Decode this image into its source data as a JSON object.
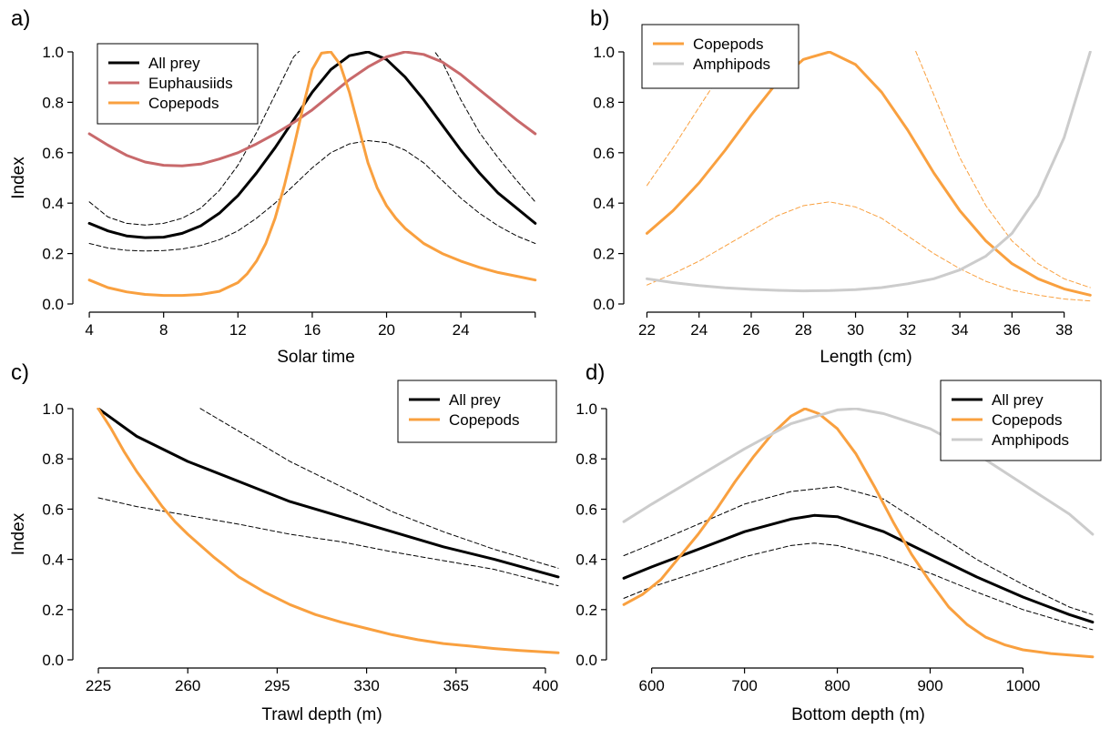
{
  "colors": {
    "all_prey": "#000000",
    "euphausiids": "#c8696b",
    "copepods": "#f9a03f",
    "amphipods": "#cccccc",
    "ci_all_prey": "#000000",
    "ci_copepods": "#f9a03f"
  },
  "chart_data": [
    {
      "type": "line",
      "panel": "a)",
      "xlabel": "Solar time",
      "ylabel": "Index",
      "xlim": [
        3.8,
        28.6
      ],
      "ylim": [
        0,
        1.0
      ],
      "xticks": [
        4,
        8,
        12,
        16,
        20,
        24,
        28
      ],
      "xtick_labels": [
        "4",
        "8",
        "12",
        "16",
        "20",
        "24",
        ""
      ],
      "yticks": [
        0,
        0.2,
        0.4,
        0.6,
        0.8,
        1.0
      ],
      "ytick_labels": [
        "0.0",
        "0.2",
        "0.4",
        "0.6",
        "0.8",
        "1.0"
      ],
      "legend_position": "top-left",
      "series": [
        {
          "name": "All prey",
          "color": "#000000",
          "style": "solid",
          "width": 3,
          "legend": true,
          "x": [
            4,
            5,
            6,
            7,
            8,
            9,
            10,
            11,
            12,
            13,
            14,
            15,
            16,
            17,
            18,
            19,
            20,
            21,
            22,
            23,
            24,
            25,
            26,
            27,
            28
          ],
          "y": [
            0.32,
            0.29,
            0.27,
            0.263,
            0.265,
            0.28,
            0.31,
            0.36,
            0.43,
            0.52,
            0.62,
            0.73,
            0.84,
            0.93,
            0.985,
            1.0,
            0.97,
            0.9,
            0.81,
            0.71,
            0.61,
            0.52,
            0.44,
            0.38,
            0.32
          ]
        },
        {
          "name": "Euphausiids",
          "color": "#c8696b",
          "style": "solid",
          "width": 3,
          "legend": true,
          "x": [
            4,
            5,
            6,
            7,
            8,
            9,
            10,
            11,
            12,
            13,
            14,
            15,
            16,
            17,
            18,
            19,
            20,
            21,
            22,
            23,
            24,
            25,
            26,
            27,
            28
          ],
          "y": [
            0.675,
            0.63,
            0.59,
            0.563,
            0.55,
            0.548,
            0.555,
            0.575,
            0.6,
            0.635,
            0.675,
            0.72,
            0.77,
            0.83,
            0.89,
            0.94,
            0.98,
            1.0,
            0.99,
            0.96,
            0.91,
            0.85,
            0.79,
            0.73,
            0.675
          ]
        },
        {
          "name": "Copepods",
          "color": "#f9a03f",
          "style": "solid",
          "width": 3,
          "legend": true,
          "x": [
            4,
            5,
            6,
            7,
            8,
            9,
            10,
            11,
            12,
            12.5,
            13,
            13.5,
            14,
            14.5,
            15,
            15.5,
            16,
            16.5,
            17,
            17.5,
            18,
            18.5,
            19,
            19.5,
            20,
            20.5,
            21,
            22,
            23,
            24,
            25,
            26,
            27,
            28
          ],
          "y": [
            0.095,
            0.065,
            0.048,
            0.038,
            0.034,
            0.034,
            0.038,
            0.05,
            0.085,
            0.12,
            0.17,
            0.24,
            0.34,
            0.47,
            0.62,
            0.78,
            0.93,
            0.995,
            1.0,
            0.95,
            0.84,
            0.7,
            0.56,
            0.46,
            0.39,
            0.34,
            0.3,
            0.24,
            0.2,
            0.17,
            0.145,
            0.125,
            0.11,
            0.095
          ]
        },
        {
          "color": "#000000",
          "style": "dashed",
          "width": 1,
          "legend": false,
          "x": [
            4,
            5,
            6,
            7,
            8,
            9,
            10,
            11,
            12,
            13,
            14,
            15,
            15.8
          ],
          "y": [
            0.405,
            0.345,
            0.32,
            0.313,
            0.32,
            0.34,
            0.38,
            0.45,
            0.55,
            0.68,
            0.83,
            0.98,
            1.04
          ]
        },
        {
          "color": "#000000",
          "style": "dashed",
          "width": 1,
          "legend": false,
          "x": [
            22.4,
            23,
            24,
            25,
            26,
            27,
            28
          ],
          "y": [
            1.02,
            0.96,
            0.81,
            0.68,
            0.58,
            0.49,
            0.405
          ]
        },
        {
          "color": "#000000",
          "style": "dashed",
          "width": 1,
          "legend": false,
          "x": [
            4,
            5,
            6,
            7,
            8,
            9,
            10,
            11,
            12,
            13,
            14,
            15,
            16,
            17,
            18,
            19,
            20,
            21,
            22,
            23,
            24,
            25,
            26,
            27,
            28
          ],
          "y": [
            0.24,
            0.222,
            0.213,
            0.21,
            0.212,
            0.218,
            0.232,
            0.255,
            0.29,
            0.34,
            0.4,
            0.47,
            0.54,
            0.6,
            0.635,
            0.648,
            0.64,
            0.61,
            0.56,
            0.49,
            0.42,
            0.36,
            0.31,
            0.27,
            0.24
          ]
        }
      ]
    },
    {
      "type": "line",
      "panel": "b)",
      "xlabel": "Length (cm)",
      "ylabel": "",
      "xlim": [
        21.6,
        39.2
      ],
      "ylim": [
        0,
        1.0
      ],
      "xticks": [
        22,
        24,
        26,
        28,
        30,
        32,
        34,
        36,
        38
      ],
      "xtick_labels": [
        "22",
        "24",
        "26",
        "28",
        "30",
        "32",
        "34",
        "36",
        "38"
      ],
      "yticks": [
        0,
        0.2,
        0.4,
        0.6,
        0.8,
        1.0
      ],
      "ytick_labels": [
        "0.0",
        "0.2",
        "0.4",
        "0.6",
        "0.8",
        "1.0"
      ],
      "legend_position": "top-left",
      "series": [
        {
          "name": "Copepods",
          "color": "#f9a03f",
          "style": "solid",
          "width": 3,
          "legend": true,
          "x": [
            22,
            23,
            24,
            25,
            26,
            27,
            28,
            29,
            30,
            31,
            32,
            33,
            34,
            35,
            36,
            37,
            38,
            39
          ],
          "y": [
            0.28,
            0.37,
            0.48,
            0.61,
            0.75,
            0.88,
            0.97,
            1.0,
            0.95,
            0.84,
            0.69,
            0.52,
            0.37,
            0.25,
            0.16,
            0.1,
            0.06,
            0.035
          ]
        },
        {
          "name": "Amphipods",
          "color": "#cccccc",
          "style": "solid",
          "width": 3,
          "legend": true,
          "x": [
            22,
            23,
            24,
            25,
            26,
            27,
            28,
            29,
            30,
            31,
            32,
            33,
            34,
            35,
            36,
            37,
            38,
            39
          ],
          "y": [
            0.1,
            0.085,
            0.073,
            0.064,
            0.058,
            0.054,
            0.052,
            0.053,
            0.057,
            0.065,
            0.08,
            0.1,
            0.135,
            0.19,
            0.28,
            0.43,
            0.66,
            1.0
          ]
        },
        {
          "color": "#f9a03f",
          "style": "dashed",
          "width": 1,
          "legend": false,
          "x": [
            22,
            23,
            24,
            25,
            25.7
          ],
          "y": [
            0.47,
            0.62,
            0.78,
            0.94,
            1.03
          ]
        },
        {
          "color": "#f9a03f",
          "style": "dashed",
          "width": 1,
          "legend": false,
          "x": [
            32.2,
            33,
            34,
            35,
            36,
            37,
            38,
            39
          ],
          "y": [
            1.03,
            0.83,
            0.58,
            0.39,
            0.25,
            0.16,
            0.1,
            0.065
          ]
        },
        {
          "color": "#f9a03f",
          "style": "dashed",
          "width": 1,
          "legend": false,
          "x": [
            22,
            23,
            24,
            25,
            26,
            27,
            28,
            29,
            30,
            31,
            32,
            33,
            34,
            35,
            36,
            37,
            38,
            39
          ],
          "y": [
            0.075,
            0.12,
            0.17,
            0.23,
            0.29,
            0.35,
            0.39,
            0.405,
            0.385,
            0.34,
            0.27,
            0.2,
            0.14,
            0.09,
            0.055,
            0.035,
            0.02,
            0.012
          ]
        }
      ]
    },
    {
      "type": "line",
      "panel": "c)",
      "xlabel": "Trawl depth (m)",
      "ylabel": "Index",
      "xlim": [
        220,
        405
      ],
      "ylim": [
        0,
        1.0
      ],
      "xticks": [
        225,
        260,
        295,
        330,
        365,
        400
      ],
      "xtick_labels": [
        "225",
        "260",
        "295",
        "330",
        "365",
        "400"
      ],
      "yticks": [
        0,
        0.2,
        0.4,
        0.6,
        0.8,
        1.0
      ],
      "ytick_labels": [
        "0.0",
        "0.2",
        "0.4",
        "0.6",
        "0.8",
        "1.0"
      ],
      "legend_position": "top-right",
      "series": [
        {
          "name": "All prey",
          "color": "#000000",
          "style": "solid",
          "width": 3,
          "legend": true,
          "x": [
            225,
            240,
            260,
            280,
            300,
            320,
            340,
            360,
            380,
            405
          ],
          "y": [
            1.0,
            0.89,
            0.79,
            0.71,
            0.63,
            0.57,
            0.51,
            0.45,
            0.4,
            0.33
          ]
        },
        {
          "name": "Copepods",
          "color": "#f9a03f",
          "style": "solid",
          "width": 3,
          "legend": true,
          "x": [
            225,
            230,
            235,
            240,
            245,
            250,
            255,
            260,
            270,
            280,
            290,
            300,
            310,
            320,
            330,
            340,
            350,
            360,
            370,
            380,
            390,
            405
          ],
          "y": [
            1.0,
            0.92,
            0.83,
            0.75,
            0.68,
            0.61,
            0.55,
            0.5,
            0.41,
            0.33,
            0.27,
            0.22,
            0.18,
            0.15,
            0.125,
            0.1,
            0.08,
            0.065,
            0.055,
            0.045,
            0.037,
            0.028
          ]
        },
        {
          "color": "#000000",
          "style": "dashed",
          "width": 1,
          "legend": false,
          "x": [
            260,
            280,
            300,
            320,
            340,
            360,
            380,
            405
          ],
          "y": [
            1.03,
            0.91,
            0.79,
            0.69,
            0.59,
            0.51,
            0.44,
            0.365
          ]
        },
        {
          "color": "#000000",
          "style": "dashed",
          "width": 1,
          "legend": false,
          "x": [
            225,
            240,
            260,
            280,
            300,
            320,
            340,
            360,
            380,
            405
          ],
          "y": [
            0.645,
            0.61,
            0.575,
            0.54,
            0.5,
            0.47,
            0.43,
            0.395,
            0.36,
            0.295
          ]
        }
      ]
    },
    {
      "type": "line",
      "panel": "d)",
      "xlabel": "Bottom depth (m)",
      "ylabel": "",
      "xlim": [
        565,
        1080
      ],
      "ylim": [
        0,
        1.0
      ],
      "xticks": [
        600,
        700,
        800,
        900,
        1000
      ],
      "xtick_labels": [
        "600",
        "700",
        "800",
        "900",
        "1000"
      ],
      "yticks": [
        0,
        0.2,
        0.4,
        0.6,
        0.8,
        1.0
      ],
      "ytick_labels": [
        "0.0",
        "0.2",
        "0.4",
        "0.6",
        "0.8",
        "1.0"
      ],
      "legend_position": "top-right",
      "series": [
        {
          "name": "All prey",
          "color": "#000000",
          "style": "solid",
          "width": 3,
          "legend": true,
          "x": [
            570,
            600,
            650,
            700,
            750,
            775,
            800,
            850,
            900,
            950,
            1000,
            1050,
            1075
          ],
          "y": [
            0.325,
            0.37,
            0.44,
            0.51,
            0.56,
            0.575,
            0.57,
            0.51,
            0.42,
            0.33,
            0.25,
            0.18,
            0.15
          ]
        },
        {
          "name": "Copepods",
          "color": "#f9a03f",
          "style": "solid",
          "width": 3,
          "legend": true,
          "x": [
            570,
            590,
            610,
            630,
            650,
            670,
            690,
            710,
            730,
            750,
            765,
            780,
            800,
            820,
            840,
            860,
            880,
            900,
            920,
            940,
            960,
            980,
            1000,
            1030,
            1075
          ],
          "y": [
            0.22,
            0.26,
            0.32,
            0.41,
            0.5,
            0.6,
            0.71,
            0.81,
            0.9,
            0.97,
            1.0,
            0.98,
            0.92,
            0.82,
            0.69,
            0.55,
            0.42,
            0.31,
            0.21,
            0.14,
            0.09,
            0.06,
            0.04,
            0.025,
            0.012
          ]
        },
        {
          "name": "Amphipods",
          "color": "#cccccc",
          "style": "solid",
          "width": 3,
          "legend": true,
          "x": [
            570,
            600,
            650,
            700,
            750,
            800,
            820,
            850,
            900,
            950,
            1000,
            1050,
            1075
          ],
          "y": [
            0.55,
            0.62,
            0.73,
            0.84,
            0.94,
            0.995,
            1.0,
            0.98,
            0.92,
            0.82,
            0.7,
            0.58,
            0.5
          ]
        },
        {
          "color": "#000000",
          "style": "dashed",
          "width": 1,
          "legend": false,
          "x": [
            570,
            600,
            650,
            700,
            750,
            800,
            850,
            900,
            950,
            1000,
            1050,
            1075
          ],
          "y": [
            0.415,
            0.46,
            0.54,
            0.62,
            0.67,
            0.69,
            0.64,
            0.52,
            0.4,
            0.3,
            0.21,
            0.18
          ]
        },
        {
          "color": "#000000",
          "style": "dashed",
          "width": 1,
          "legend": false,
          "x": [
            570,
            600,
            650,
            700,
            750,
            775,
            800,
            850,
            900,
            950,
            1000,
            1050,
            1075
          ],
          "y": [
            0.245,
            0.29,
            0.35,
            0.41,
            0.455,
            0.465,
            0.455,
            0.41,
            0.345,
            0.27,
            0.2,
            0.145,
            0.12
          ]
        }
      ]
    }
  ]
}
